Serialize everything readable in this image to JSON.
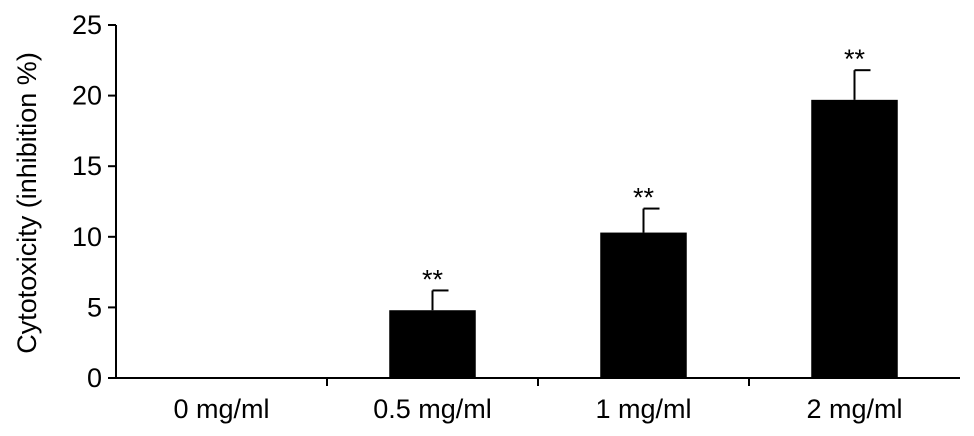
{
  "chart_data": {
    "type": "bar",
    "title": "",
    "xlabel": "",
    "ylabel": "Cytotoxicity (inhibition %)",
    "ylim": [
      0,
      25
    ],
    "yticks": [
      0,
      5,
      10,
      15,
      20,
      25
    ],
    "categories": [
      "0 mg/ml",
      "0.5 mg/ml",
      "1 mg/ml",
      "2 mg/ml"
    ],
    "values": [
      0,
      4.8,
      10.3,
      19.7
    ],
    "error": [
      0,
      1.4,
      1.7,
      2.1
    ],
    "annotations": [
      "",
      "**",
      "**",
      "**"
    ],
    "bar_color": "#000000",
    "grid": false,
    "legend": "none"
  }
}
